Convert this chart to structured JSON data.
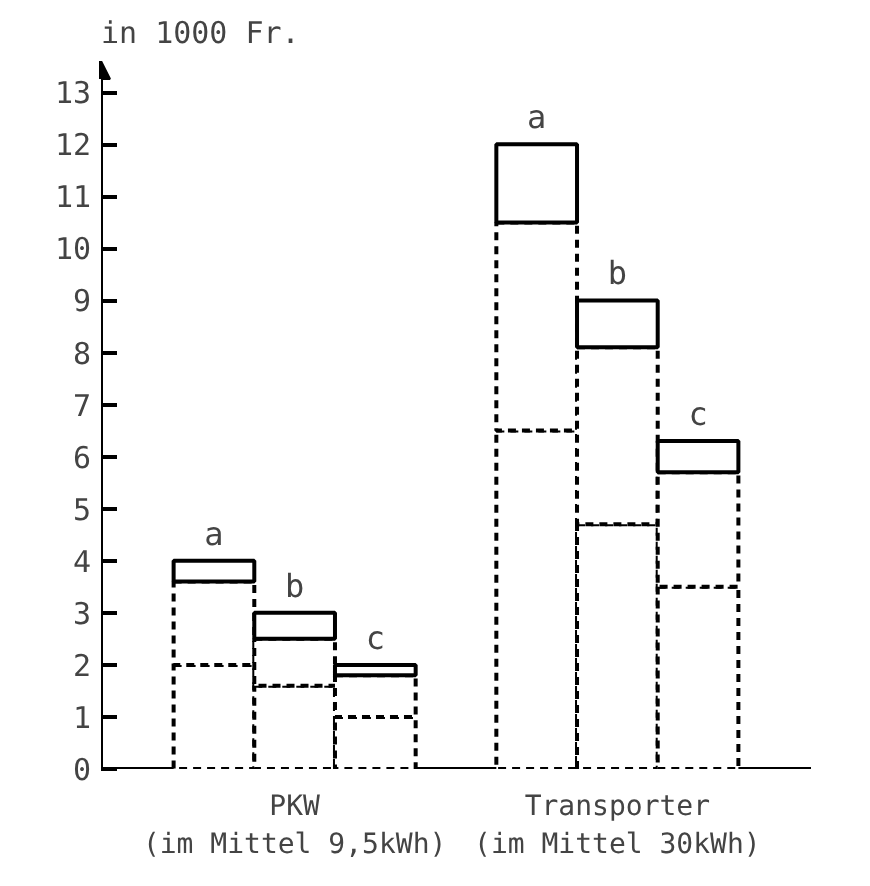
{
  "chart_data": {
    "type": "bar",
    "stacked": true,
    "ylabel": "in 1000 Fr.",
    "categories": [
      null,
      null,
      null,
      null,
      null,
      null
    ],
    "series": [
      {
        "color": "#ffffff",
        "line_style": "dashed",
        "values": [
          2.0,
          1.6,
          1.0,
          6.5,
          4.7,
          3.5
        ]
      },
      {
        "color": "#ffffff",
        "line_style": "dashed",
        "values": [
          1.6,
          0.9,
          0.8,
          4.0,
          3.4,
          2.2
        ]
      },
      {
        "color": "#ffffff",
        "line_style": "solid",
        "values": [
          0.4,
          0.5,
          0.2,
          1.5,
          0.9,
          0.6
        ]
      }
    ],
    "ylim": [
      0,
      13.6
    ],
    "yticks": [
      0,
      1,
      2,
      3,
      4,
      5,
      6,
      7,
      8,
      9,
      10,
      11,
      12,
      13
    ],
    "grid": false,
    "annotations": [
      "a",
      "b",
      "c",
      "a",
      "b",
      "c",
      "PKW\n(im Mittel 9,5kWh)",
      "Transporter\n(im Mittel 30kWh)"
    ]
  }
}
